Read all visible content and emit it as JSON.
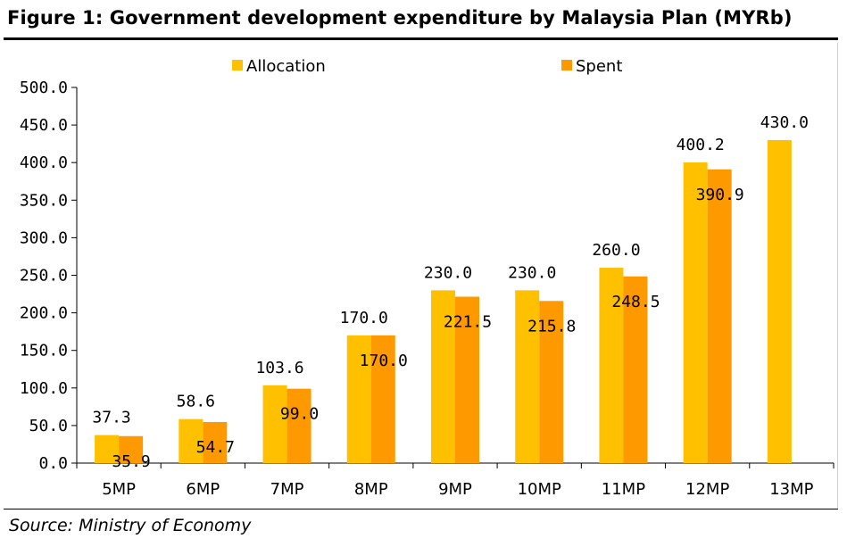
{
  "figure": {
    "title": "Figure 1: Government development expenditure by Malaysia Plan (MYRb)",
    "source": "Source: Ministry of Economy"
  },
  "colors": {
    "allocation": "#ffc000",
    "spent": "#ff9900"
  },
  "chart_data": {
    "type": "bar",
    "title": "Figure 1: Government development expenditure by Malaysia Plan (MYRb)",
    "xlabel": "",
    "ylabel": "",
    "categories": [
      "5MP",
      "6MP",
      "7MP",
      "8MP",
      "9MP",
      "10MP",
      "11MP",
      "12MP",
      "13MP"
    ],
    "series": [
      {
        "name": "Allocation",
        "color": "#ffc000",
        "values": [
          37.3,
          58.6,
          103.6,
          170.0,
          230.0,
          230.0,
          260.0,
          400.2,
          430.0
        ],
        "labels": [
          "37.3",
          "58.6",
          "103.6",
          "170.0",
          "230.0",
          "230.0",
          "260.0",
          "400.2",
          "430.0"
        ]
      },
      {
        "name": "Spent",
        "color": "#ff9900",
        "values": [
          35.9,
          54.7,
          99.0,
          170.0,
          221.5,
          215.8,
          248.5,
          390.9,
          null
        ],
        "labels": [
          "35.9",
          "54.7",
          "99.0",
          "170.0",
          "221.5",
          "215.8",
          "248.5",
          "390.9",
          null
        ]
      }
    ],
    "ylim": [
      0,
      500
    ],
    "yticks": [
      "0.0",
      "50.0",
      "100.0",
      "150.0",
      "200.0",
      "250.0",
      "300.0",
      "350.0",
      "400.0",
      "450.0",
      "500.0"
    ],
    "grid": false,
    "legend_position": "top"
  }
}
